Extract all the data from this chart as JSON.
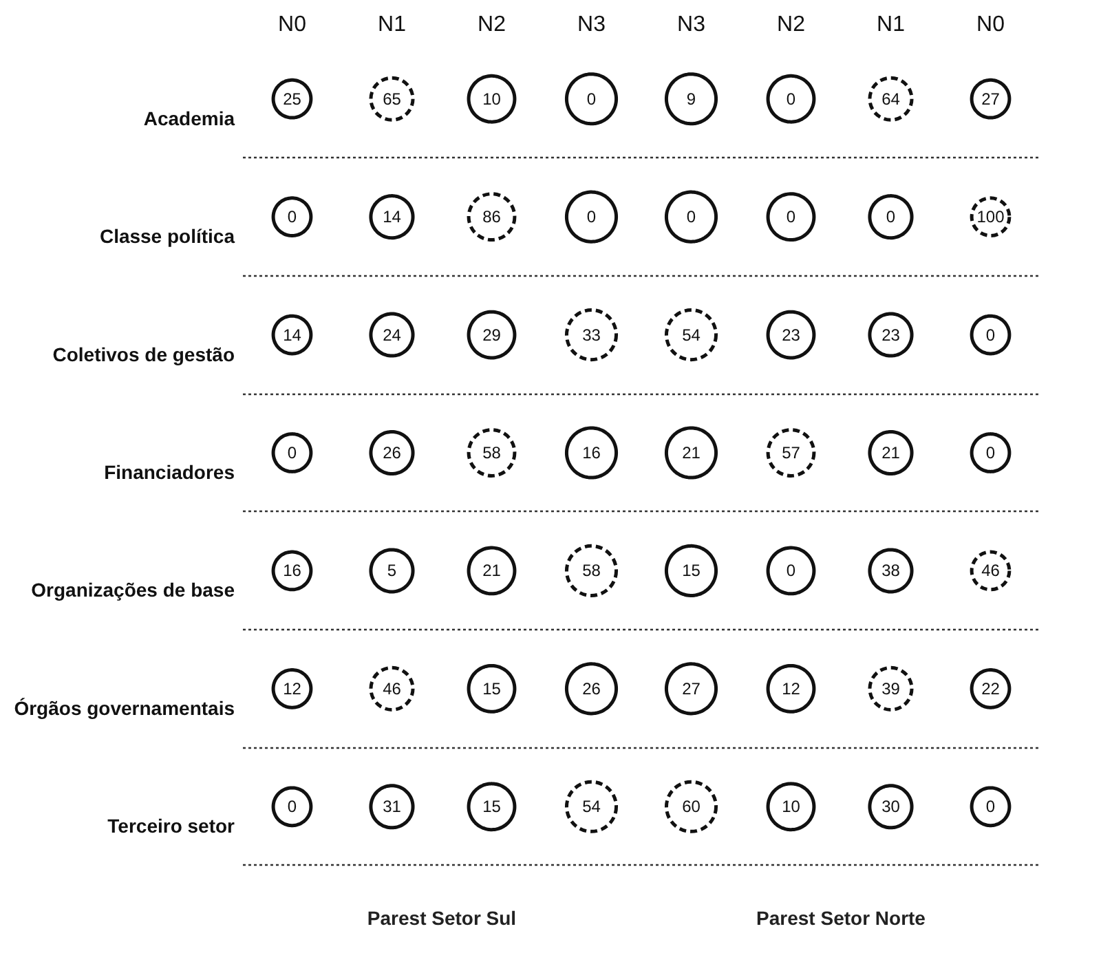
{
  "chart_data": {
    "type": "heatmap",
    "categories": [
      "N0",
      "N1",
      "N2",
      "N3",
      "N3",
      "N2",
      "N1",
      "N0"
    ],
    "y_categories": [
      "Academia",
      "Classe política",
      "Coletivos de gestão",
      "Financiadores",
      "Organizações de base",
      "Órgãos governamentais",
      "Terceiro setor"
    ],
    "cells": [
      [
        25,
        65,
        10,
        0,
        9,
        0,
        64,
        27
      ],
      [
        0,
        14,
        86,
        0,
        0,
        0,
        0,
        100
      ],
      [
        14,
        24,
        29,
        33,
        54,
        23,
        23,
        0
      ],
      [
        0,
        26,
        58,
        16,
        21,
        57,
        21,
        0
      ],
      [
        16,
        5,
        21,
        58,
        15,
        0,
        38,
        46
      ],
      [
        12,
        46,
        15,
        26,
        27,
        12,
        39,
        22
      ],
      [
        0,
        31,
        15,
        54,
        60,
        10,
        30,
        0
      ]
    ],
    "annotations": [
      "Parest Setor Sul",
      "Parest Setor Norte"
    ],
    "data_labels": true,
    "grid": "y"
  }
}
